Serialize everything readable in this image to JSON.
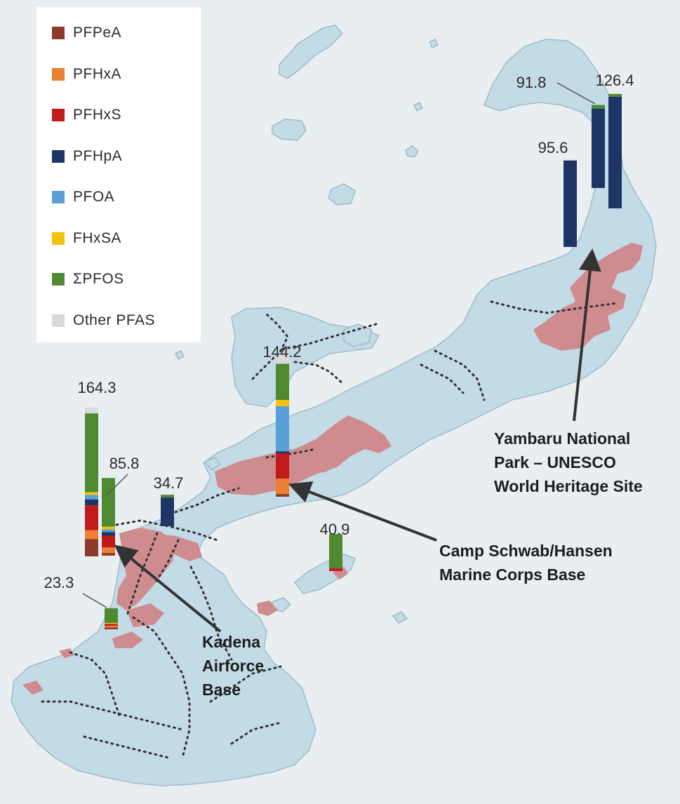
{
  "legend": [
    {
      "name": "PFPeA",
      "color": "#8b3a2b"
    },
    {
      "name": "PFHxA",
      "color": "#ec7f34"
    },
    {
      "name": "PFHxS",
      "color": "#c01a1a"
    },
    {
      "name": "PFHpA",
      "color": "#1f3566"
    },
    {
      "name": "PFOA",
      "color": "#5a9fd6"
    },
    {
      "name": "FHxSA",
      "color": "#f3c20e"
    },
    {
      "name": "ΣPFOS",
      "color": "#4f8a32"
    },
    {
      "name": "Other PFAS",
      "color": "#d9d9d9"
    }
  ],
  "colors": {
    "sea": "#e9eef1",
    "land": "#c3dbe6",
    "coast": "#9dbccb",
    "military_area": "#cf8c8f",
    "boundary": "#333333"
  },
  "sites": {
    "yambaru": {
      "text": "Yambaru National\nPark – UNESCO\nWorld Heritage Site"
    },
    "schwab": {
      "text": "Camp Schwab/Hansen\nMarine Corps Base"
    },
    "kadena": {
      "text": "Kadena\nAirforce\nBase"
    }
  },
  "chart_data": {
    "type": "bar",
    "stacked": true,
    "series_order": [
      "PFPeA",
      "PFHxA",
      "PFHxS",
      "PFHpA",
      "PFOA",
      "FHxSA",
      "ΣPFOS",
      "Other PFAS"
    ],
    "bars": [
      {
        "label": "164.3",
        "total": 164.3,
        "values": {
          "PFPeA": 19,
          "PFHxA": 10,
          "PFHxS": 27,
          "PFHpA": 7,
          "PFOA": 5,
          "FHxSA": 3,
          "ΣPFOS": 87,
          "Other PFAS": 6.3
        }
      },
      {
        "label": "85.8",
        "total": 85.8,
        "values": {
          "PFPeA": 3,
          "PFHxA": 6,
          "PFHxS": 13,
          "PFHpA": 4,
          "PFOA": 3,
          "FHxSA": 3,
          "ΣPFOS": 53.8,
          "Other PFAS": 0
        }
      },
      {
        "label": "34.7",
        "total": 34.7,
        "values": {
          "PFPeA": 0,
          "PFHxA": 0,
          "PFHxS": 0,
          "PFHpA": 31.7,
          "PFOA": 0,
          "FHxSA": 0,
          "ΣPFOS": 3,
          "Other PFAS": 0
        }
      },
      {
        "label": "144.2",
        "total": 144.2,
        "values": {
          "PFPeA": 3,
          "PFHxA": 17,
          "PFHxS": 28,
          "PFHpA": 2,
          "PFOA": 50,
          "FHxSA": 7,
          "ΣPFOS": 40,
          "Other PFAS": 10.2
        }
      },
      {
        "label": "23.3",
        "total": 23.3,
        "values": {
          "PFPeA": 2,
          "PFHxA": 2,
          "PFHxS": 2,
          "PFHpA": 0,
          "PFOA": 0,
          "FHxSA": 1,
          "ΣPFOS": 16.3,
          "Other PFAS": 0
        }
      },
      {
        "label": "40.9",
        "total": 40.9,
        "values": {
          "PFPeA": 0,
          "PFHxA": 0,
          "PFHxS": 3,
          "PFHpA": 0,
          "PFOA": 0,
          "FHxSA": 0,
          "ΣPFOS": 37.9,
          "Other PFAS": 0
        }
      },
      {
        "label": "95.6",
        "total": 95.6,
        "values": {
          "PFPeA": 0,
          "PFHxA": 0,
          "PFHxS": 0,
          "PFHpA": 95.6,
          "PFOA": 0,
          "FHxSA": 0,
          "ΣPFOS": 0,
          "Other PFAS": 0
        }
      },
      {
        "label": "91.8",
        "total": 91.8,
        "values": {
          "PFPeA": 0,
          "PFHxA": 0,
          "PFHxS": 0,
          "PFHpA": 87.8,
          "PFOA": 0,
          "FHxSA": 0,
          "ΣPFOS": 4,
          "Other PFAS": 0
        }
      },
      {
        "label": "126.4",
        "total": 126.4,
        "values": {
          "PFPeA": 0,
          "PFHxA": 0,
          "PFHxS": 0,
          "PFHpA": 123.4,
          "PFOA": 0,
          "FHxSA": 0,
          "ΣPFOS": 3,
          "Other PFAS": 0
        }
      }
    ]
  }
}
